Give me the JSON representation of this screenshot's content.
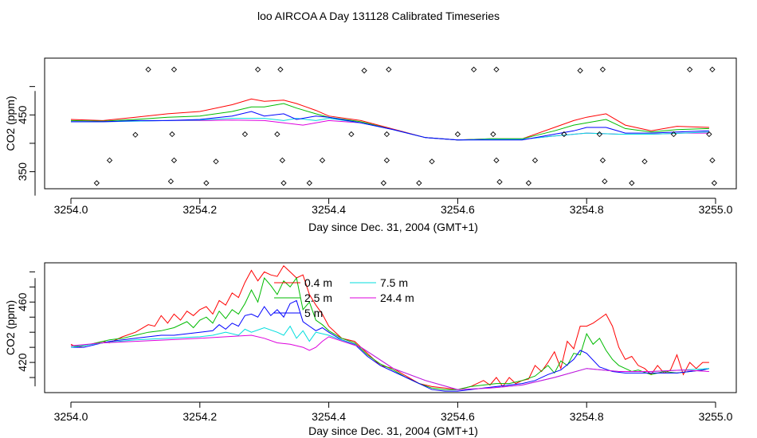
{
  "title": "loo AIRCOA A  Day 131128  Calibrated Timeseries",
  "colors": {
    "0.4 m": "#ff0000",
    "2.5 m": "#00bb00",
    "5 m": "#0000ff",
    "7.5 m": "#00dddd",
    "24.4 m": "#dd00dd"
  },
  "chart_data": [
    {
      "type": "line",
      "xlabel": "Day since Dec. 31, 2004 (GMT+1)",
      "ylabel": "CO2 (ppm)",
      "xlim": [
        3254.0,
        3255.0
      ],
      "ylim": [
        320,
        550
      ],
      "x_ticks": [
        "3254.0",
        "3254.2",
        "3254.4",
        "3254.6",
        "3254.8",
        "3255.0"
      ],
      "y_ticks": [
        "350",
        "450"
      ],
      "series": [
        {
          "name": "0.4 m",
          "color": "#ff0000",
          "x": [
            3254.0,
            3254.05,
            3254.1,
            3254.15,
            3254.2,
            3254.25,
            3254.28,
            3254.3,
            3254.33,
            3254.35,
            3254.38,
            3254.4,
            3254.45,
            3254.5,
            3254.55,
            3254.6,
            3254.65,
            3254.7,
            3254.75,
            3254.78,
            3254.8,
            3254.83,
            3254.86,
            3254.9,
            3254.94,
            3254.99
          ],
          "values": [
            442,
            440,
            446,
            452,
            456,
            468,
            478,
            474,
            476,
            470,
            458,
            448,
            440,
            425,
            410,
            406,
            408,
            408,
            428,
            440,
            446,
            452,
            432,
            422,
            430,
            428
          ]
        },
        {
          "name": "2.5 m",
          "color": "#00bb00",
          "x": [
            3254.0,
            3254.05,
            3254.1,
            3254.15,
            3254.2,
            3254.25,
            3254.28,
            3254.3,
            3254.33,
            3254.35,
            3254.38,
            3254.4,
            3254.45,
            3254.5,
            3254.55,
            3254.6,
            3254.65,
            3254.7,
            3254.75,
            3254.78,
            3254.8,
            3254.83,
            3254.86,
            3254.9,
            3254.94,
            3254.99
          ],
          "values": [
            440,
            439,
            442,
            446,
            448,
            456,
            464,
            464,
            470,
            462,
            452,
            446,
            438,
            424,
            410,
            406,
            408,
            408,
            422,
            432,
            436,
            442,
            426,
            420,
            424,
            426
          ]
        },
        {
          "name": "5 m",
          "color": "#0000ff",
          "x": [
            3254.0,
            3254.05,
            3254.1,
            3254.15,
            3254.2,
            3254.25,
            3254.28,
            3254.3,
            3254.33,
            3254.35,
            3254.38,
            3254.4,
            3254.45,
            3254.5,
            3254.55,
            3254.6,
            3254.65,
            3254.7,
            3254.75,
            3254.78,
            3254.8,
            3254.83,
            3254.86,
            3254.9,
            3254.94,
            3254.99
          ],
          "values": [
            438,
            438,
            440,
            440,
            442,
            448,
            456,
            448,
            452,
            442,
            448,
            446,
            436,
            424,
            410,
            406,
            406,
            406,
            416,
            422,
            428,
            428,
            418,
            418,
            420,
            422
          ]
        },
        {
          "name": "7.5 m",
          "color": "#00dddd",
          "x": [
            3254.0,
            3254.05,
            3254.1,
            3254.15,
            3254.2,
            3254.25,
            3254.3,
            3254.33,
            3254.35,
            3254.38,
            3254.4,
            3254.45,
            3254.5,
            3254.55,
            3254.6,
            3254.65,
            3254.7,
            3254.75,
            3254.8,
            3254.85,
            3254.9,
            3254.95,
            3254.99
          ],
          "values": [
            438,
            438,
            439,
            440,
            441,
            444,
            444,
            440,
            444,
            440,
            444,
            436,
            424,
            410,
            406,
            407,
            407,
            413,
            418,
            416,
            416,
            418,
            420
          ]
        },
        {
          "name": "24.4 m",
          "color": "#dd00dd",
          "x": [
            3254.0,
            3254.05,
            3254.1,
            3254.15,
            3254.2,
            3254.25,
            3254.3,
            3254.33,
            3254.36,
            3254.4,
            3254.45,
            3254.5,
            3254.55,
            3254.6,
            3254.65,
            3254.7,
            3254.75,
            3254.8,
            3254.85,
            3254.9,
            3254.95,
            3254.99
          ],
          "values": [
            438,
            438,
            439,
            440,
            440,
            441,
            440,
            436,
            432,
            440,
            436,
            424,
            410,
            406,
            407,
            407,
            413,
            418,
            416,
            416,
            418,
            418
          ]
        }
      ],
      "flags": {
        "x": [
          3254.04,
          3254.06,
          3254.1,
          3254.12,
          3254.155,
          3254.16,
          3254.157,
          3254.16,
          3254.21,
          3254.225,
          3254.27,
          3254.29,
          3254.32,
          3254.325,
          3254.328,
          3254.33,
          3254.37,
          3254.39,
          3254.435,
          3254.455,
          3254.485,
          3254.49,
          3254.49,
          3254.493,
          3254.54,
          3254.56,
          3254.6,
          3254.625,
          3254.655,
          3254.66,
          3254.66,
          3254.665,
          3254.71,
          3254.72,
          3254.765,
          3254.79,
          3254.82,
          3254.825,
          3254.825,
          3254.828,
          3254.87,
          3254.89,
          3254.935,
          3254.96,
          3254.99,
          3254.995,
          3254.995,
          3254.998
        ],
        "values": [
          330,
          370,
          415,
          530,
          333,
          370,
          416,
          530,
          330,
          368,
          416,
          530,
          416,
          530,
          370,
          330,
          330,
          370,
          416,
          528,
          330,
          370,
          416,
          530,
          330,
          368,
          416,
          530,
          416,
          530,
          370,
          332,
          330,
          370,
          416,
          528,
          416,
          530,
          370,
          333,
          330,
          368,
          416,
          530,
          416,
          530,
          370,
          330
        ]
      }
    },
    {
      "type": "line",
      "xlabel": "Day since Dec. 31, 2004 (GMT+1)",
      "ylabel": "CO2 (ppm)",
      "xlim": [
        3254.0,
        3255.0
      ],
      "ylim": [
        400,
        486
      ],
      "x_ticks": [
        "3254.0",
        "3254.2",
        "3254.4",
        "3254.6",
        "3254.8",
        "3255.0"
      ],
      "y_ticks": [
        "420",
        "460"
      ],
      "legend": {
        "position": "top-center",
        "entries": [
          "0.4 m",
          "2.5 m",
          "5 m",
          "7.5 m",
          "24.4 m"
        ]
      },
      "series": [
        {
          "name": "0.4 m",
          "color": "#ff0000",
          "x": [
            3254.0,
            3254.01,
            3254.02,
            3254.04,
            3254.05,
            3254.06,
            3254.08,
            3254.1,
            3254.12,
            3254.13,
            3254.14,
            3254.15,
            3254.16,
            3254.17,
            3254.18,
            3254.19,
            3254.2,
            3254.21,
            3254.22,
            3254.23,
            3254.24,
            3254.25,
            3254.26,
            3254.27,
            3254.28,
            3254.29,
            3254.3,
            3254.31,
            3254.32,
            3254.33,
            3254.34,
            3254.35,
            3254.36,
            3254.37,
            3254.38,
            3254.39,
            3254.4,
            3254.42,
            3254.44,
            3254.46,
            3254.48,
            3254.5,
            3254.52,
            3254.54,
            3254.56,
            3254.58,
            3254.6,
            3254.62,
            3254.64,
            3254.65,
            3254.66,
            3254.67,
            3254.68,
            3254.69,
            3254.7,
            3254.71,
            3254.72,
            3254.73,
            3254.74,
            3254.75,
            3254.76,
            3254.77,
            3254.78,
            3254.79,
            3254.8,
            3254.81,
            3254.82,
            3254.83,
            3254.84,
            3254.85,
            3254.86,
            3254.87,
            3254.88,
            3254.89,
            3254.9,
            3254.91,
            3254.92,
            3254.93,
            3254.94,
            3254.95,
            3254.96,
            3254.97,
            3254.98,
            3254.99
          ],
          "values": [
            432,
            430,
            431,
            433,
            434,
            433,
            437,
            440,
            445,
            444,
            451,
            446,
            452,
            448,
            454,
            451,
            455,
            457,
            452,
            461,
            458,
            466,
            463,
            473,
            481,
            474,
            480,
            478,
            477,
            484,
            480,
            476,
            478,
            465,
            458,
            452,
            444,
            436,
            434,
            426,
            418,
            416,
            411,
            406,
            404,
            403,
            402,
            404,
            408,
            405,
            410,
            404,
            410,
            406,
            408,
            409,
            418,
            414,
            420,
            427,
            416,
            434,
            429,
            444,
            444,
            446,
            449,
            452,
            444,
            430,
            422,
            424,
            418,
            416,
            412,
            418,
            413,
            415,
            425,
            412,
            420,
            416,
            420,
            420
          ]
        },
        {
          "name": "2.5 m",
          "color": "#00bb00",
          "x": [
            3254.0,
            3254.02,
            3254.04,
            3254.06,
            3254.08,
            3254.1,
            3254.12,
            3254.14,
            3254.16,
            3254.18,
            3254.19,
            3254.2,
            3254.21,
            3254.22,
            3254.23,
            3254.24,
            3254.25,
            3254.26,
            3254.27,
            3254.28,
            3254.29,
            3254.3,
            3254.31,
            3254.32,
            3254.33,
            3254.34,
            3254.35,
            3254.36,
            3254.37,
            3254.38,
            3254.39,
            3254.4,
            3254.42,
            3254.44,
            3254.46,
            3254.48,
            3254.5,
            3254.52,
            3254.54,
            3254.56,
            3254.58,
            3254.6,
            3254.62,
            3254.64,
            3254.66,
            3254.68,
            3254.7,
            3254.72,
            3254.74,
            3254.75,
            3254.76,
            3254.77,
            3254.78,
            3254.79,
            3254.8,
            3254.81,
            3254.82,
            3254.83,
            3254.84,
            3254.85,
            3254.86,
            3254.87,
            3254.88,
            3254.9,
            3254.92,
            3254.94,
            3254.96,
            3254.98,
            3254.99
          ],
          "values": [
            431,
            431,
            433,
            435,
            436,
            438,
            440,
            441,
            443,
            447,
            443,
            448,
            450,
            446,
            454,
            449,
            455,
            452,
            459,
            468,
            460,
            476,
            471,
            465,
            474,
            470,
            476,
            455,
            460,
            448,
            445,
            441,
            436,
            433,
            425,
            419,
            415,
            410,
            406,
            403,
            402,
            402,
            404,
            405,
            406,
            406,
            408,
            411,
            418,
            413,
            421,
            418,
            426,
            425,
            439,
            432,
            436,
            428,
            422,
            418,
            416,
            414,
            415,
            412,
            414,
            413,
            414,
            415,
            416
          ]
        },
        {
          "name": "5 m",
          "color": "#0000ff",
          "x": [
            3254.0,
            3254.02,
            3254.04,
            3254.06,
            3254.08,
            3254.1,
            3254.12,
            3254.14,
            3254.16,
            3254.18,
            3254.2,
            3254.22,
            3254.23,
            3254.24,
            3254.25,
            3254.26,
            3254.27,
            3254.28,
            3254.29,
            3254.3,
            3254.31,
            3254.32,
            3254.33,
            3254.34,
            3254.35,
            3254.36,
            3254.37,
            3254.38,
            3254.39,
            3254.4,
            3254.42,
            3254.44,
            3254.46,
            3254.48,
            3254.5,
            3254.52,
            3254.54,
            3254.56,
            3254.58,
            3254.6,
            3254.62,
            3254.64,
            3254.66,
            3254.68,
            3254.7,
            3254.72,
            3254.74,
            3254.76,
            3254.78,
            3254.79,
            3254.8,
            3254.82,
            3254.84,
            3254.86,
            3254.88,
            3254.9,
            3254.92,
            3254.94,
            3254.96,
            3254.98,
            3254.99
          ],
          "values": [
            430,
            430,
            432,
            434,
            435,
            436,
            437,
            438,
            438,
            439,
            440,
            441,
            445,
            442,
            446,
            444,
            451,
            452,
            450,
            457,
            451,
            455,
            450,
            459,
            461,
            447,
            444,
            441,
            443,
            440,
            435,
            432,
            424,
            418,
            414,
            410,
            406,
            402,
            401,
            401,
            402,
            403,
            404,
            405,
            406,
            408,
            412,
            415,
            422,
            428,
            426,
            417,
            414,
            413,
            413,
            413,
            413,
            413,
            414,
            415,
            416
          ]
        },
        {
          "name": "7.5 m",
          "color": "#00dddd",
          "x": [
            3254.0,
            3254.05,
            3254.1,
            3254.15,
            3254.2,
            3254.22,
            3254.24,
            3254.26,
            3254.27,
            3254.28,
            3254.3,
            3254.32,
            3254.33,
            3254.34,
            3254.35,
            3254.36,
            3254.37,
            3254.38,
            3254.4,
            3254.45,
            3254.5,
            3254.55,
            3254.6,
            3254.65,
            3254.7,
            3254.75,
            3254.8,
            3254.85,
            3254.9,
            3254.95,
            3254.99
          ],
          "values": [
            430,
            433,
            435,
            436,
            437,
            438,
            440,
            438,
            442,
            440,
            443,
            440,
            438,
            444,
            436,
            441,
            434,
            440,
            438,
            430,
            416,
            408,
            402,
            403,
            405,
            410,
            416,
            414,
            414,
            415,
            416
          ]
        },
        {
          "name": "24.4 m",
          "color": "#dd00dd",
          "x": [
            3254.0,
            3254.05,
            3254.1,
            3254.15,
            3254.2,
            3254.24,
            3254.28,
            3254.3,
            3254.32,
            3254.34,
            3254.36,
            3254.37,
            3254.38,
            3254.39,
            3254.4,
            3254.45,
            3254.5,
            3254.55,
            3254.6,
            3254.65,
            3254.7,
            3254.75,
            3254.8,
            3254.85,
            3254.9,
            3254.95,
            3254.99
          ],
          "values": [
            431,
            433,
            434,
            435,
            436,
            437,
            438,
            436,
            433,
            432,
            430,
            428,
            430,
            434,
            437,
            430,
            416,
            408,
            402,
            403,
            405,
            410,
            416,
            414,
            414,
            415,
            414
          ]
        }
      ]
    }
  ]
}
